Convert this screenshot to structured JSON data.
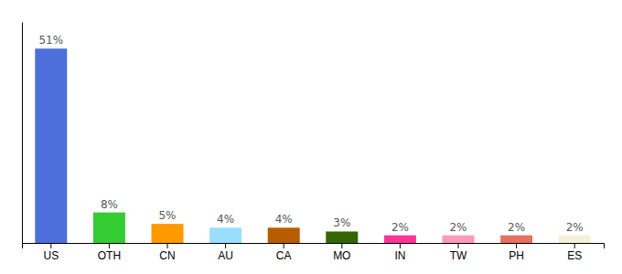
{
  "chart_data": {
    "type": "bar",
    "categories": [
      "US",
      "OTH",
      "CN",
      "AU",
      "CA",
      "MO",
      "IN",
      "TW",
      "PH",
      "ES"
    ],
    "values": [
      51,
      8,
      5,
      4,
      4,
      3,
      2,
      2,
      2,
      2
    ],
    "value_labels": [
      "51%",
      "8%",
      "5%",
      "4%",
      "4%",
      "3%",
      "2%",
      "2%",
      "2%",
      "2%"
    ],
    "colors": [
      "#4d6fdb",
      "#33cc33",
      "#ff9900",
      "#99ddff",
      "#b85c00",
      "#336600",
      "#ff3399",
      "#ff99bb",
      "#e87060",
      "#f5f0d8"
    ],
    "ylim": [
      0,
      58
    ],
    "data_labels": true,
    "tick_labels": "x",
    "grid": false
  }
}
